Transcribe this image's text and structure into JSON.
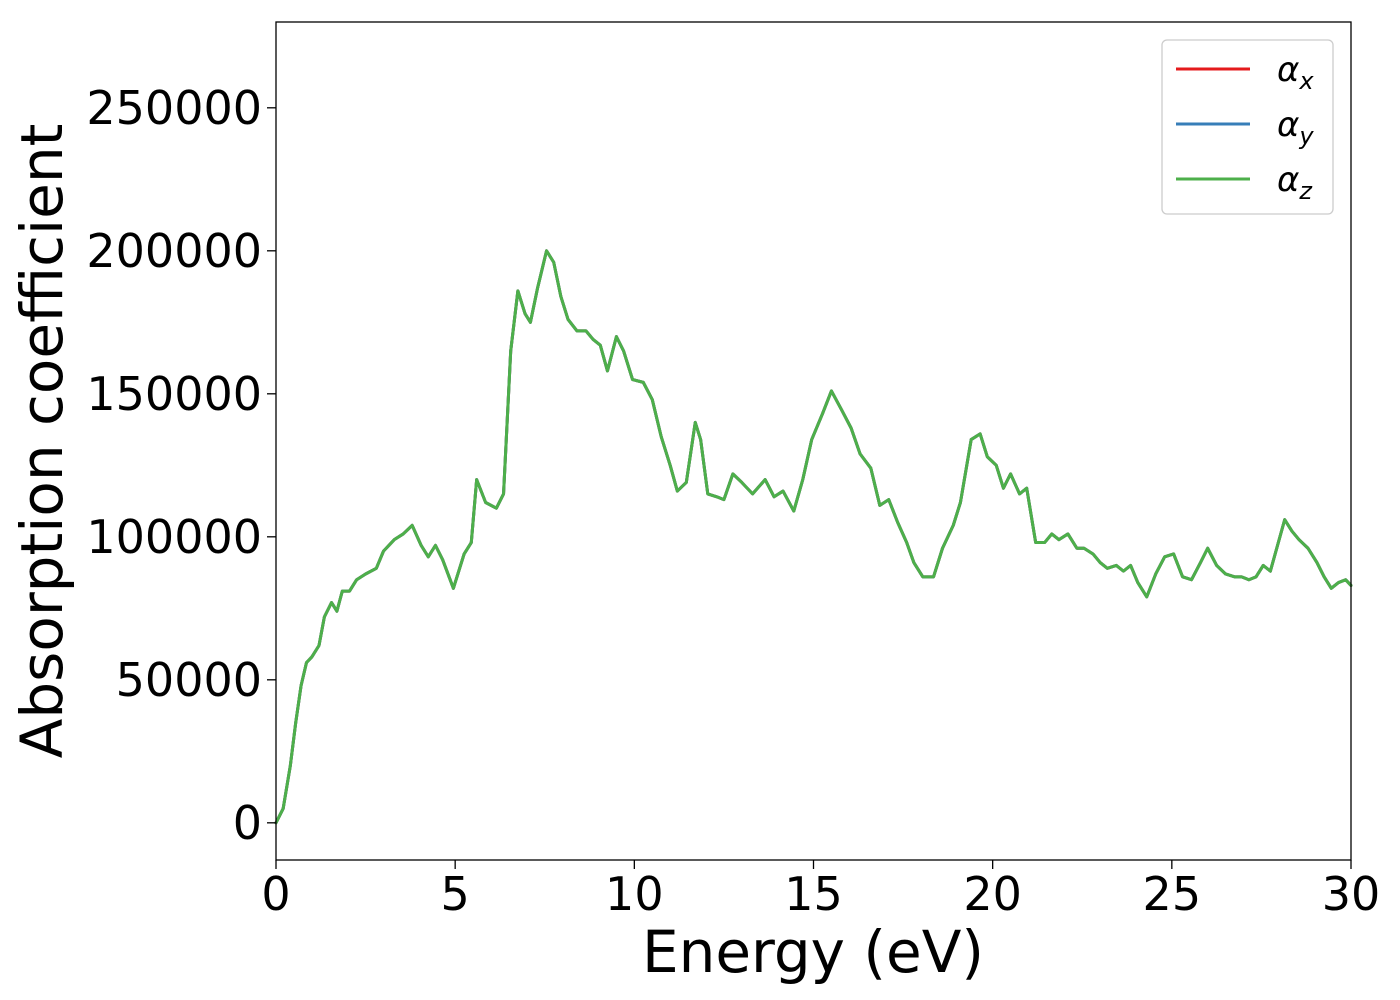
{
  "chart_data": {
    "type": "line",
    "title": "",
    "xlabel": "Energy (eV)",
    "ylabel": "Absorption coefficient",
    "xlim": [
      0,
      30
    ],
    "ylim": [
      -13000,
      280000
    ],
    "x_ticks": [
      0,
      5,
      10,
      15,
      20,
      25,
      30
    ],
    "x_tick_labels": [
      "0",
      "5",
      "10",
      "15",
      "20",
      "25",
      "30"
    ],
    "y_ticks": [
      0,
      50000,
      100000,
      150000,
      200000,
      250000
    ],
    "y_tick_labels": [
      "0",
      "50000",
      "100000",
      "150000",
      "200000",
      "250000"
    ],
    "grid": false,
    "legend_position": "top-right",
    "legend": [
      {
        "symbol": "α",
        "subscript": "x",
        "color": "#e41a1c"
      },
      {
        "symbol": "α",
        "subscript": "y",
        "color": "#377eb8"
      },
      {
        "symbol": "α",
        "subscript": "z",
        "color": "#4daf4a"
      }
    ],
    "x": [
      0.0,
      0.2,
      0.4,
      0.55,
      0.7,
      0.85,
      1.0,
      1.2,
      1.35,
      1.55,
      1.7,
      1.85,
      2.05,
      2.25,
      2.5,
      2.8,
      3.0,
      3.3,
      3.55,
      3.8,
      4.05,
      4.25,
      4.45,
      4.65,
      4.95,
      5.25,
      5.45,
      5.6,
      5.85,
      6.15,
      6.35,
      6.55,
      6.75,
      6.95,
      7.1,
      7.3,
      7.55,
      7.75,
      7.95,
      8.15,
      8.4,
      8.65,
      8.85,
      9.05,
      9.25,
      9.5,
      9.7,
      9.95,
      10.25,
      10.5,
      10.75,
      11.0,
      11.2,
      11.45,
      11.7,
      11.85,
      12.05,
      12.3,
      12.5,
      12.75,
      13.0,
      13.3,
      13.65,
      13.9,
      14.15,
      14.45,
      14.7,
      14.95,
      15.25,
      15.5,
      15.8,
      16.05,
      16.3,
      16.6,
      16.85,
      17.1,
      17.35,
      17.6,
      17.8,
      18.05,
      18.35,
      18.6,
      18.9,
      19.1,
      19.4,
      19.65,
      19.85,
      20.1,
      20.3,
      20.5,
      20.75,
      20.95,
      21.2,
      21.45,
      21.65,
      21.85,
      22.1,
      22.35,
      22.55,
      22.8,
      23.0,
      23.2,
      23.45,
      23.65,
      23.85,
      24.05,
      24.3,
      24.55,
      24.8,
      25.05,
      25.3,
      25.55,
      25.8,
      26.0,
      26.25,
      26.5,
      26.75,
      26.95,
      27.15,
      27.35,
      27.55,
      27.75,
      27.95,
      28.15,
      28.35,
      28.55,
      28.8,
      29.05,
      29.25,
      29.45,
      29.65,
      29.85,
      30.0
    ],
    "series": [
      {
        "name": "α_x",
        "color": "#e41a1c",
        "values": [
          0,
          5000,
          20000,
          35000,
          48000,
          56000,
          58000,
          62000,
          72000,
          77000,
          74000,
          81000,
          81000,
          85000,
          87000,
          89000,
          95000,
          99000,
          101000,
          104000,
          97000,
          93000,
          97000,
          92000,
          82000,
          94000,
          98000,
          120000,
          112000,
          110000,
          115000,
          165000,
          186000,
          178000,
          175000,
          187000,
          200000,
          196000,
          184000,
          176000,
          172000,
          172000,
          169000,
          167000,
          158000,
          170000,
          165000,
          155000,
          154000,
          148000,
          135000,
          125000,
          116000,
          119000,
          140000,
          134000,
          115000,
          114000,
          113000,
          122000,
          119000,
          115000,
          120000,
          114000,
          116000,
          109000,
          120000,
          134000,
          143000,
          151000,
          144000,
          138000,
          129000,
          124000,
          111000,
          113000,
          105000,
          98000,
          91000,
          86000,
          86000,
          96000,
          104000,
          112000,
          134000,
          136000,
          128000,
          125000,
          117000,
          122000,
          115000,
          117000,
          98000,
          98000,
          101000,
          99000,
          101000,
          96000,
          96000,
          94000,
          91000,
          89000,
          90000,
          88000,
          90000,
          84000,
          79000,
          87000,
          93000,
          94000,
          86000,
          85000,
          91000,
          96000,
          90000,
          87000,
          86000,
          86000,
          85000,
          86000,
          90000,
          88000,
          97000,
          106000,
          102000,
          99000,
          96000,
          91000,
          86000,
          82000,
          84000,
          85000,
          83000
        ]
      },
      {
        "name": "α_y",
        "color": "#377eb8",
        "values": [
          0,
          5000,
          20000,
          35000,
          48000,
          56000,
          58000,
          62000,
          72000,
          77000,
          74000,
          81000,
          81000,
          85000,
          87000,
          89000,
          95000,
          99000,
          101000,
          104000,
          97000,
          93000,
          97000,
          92000,
          82000,
          94000,
          98000,
          120000,
          112000,
          110000,
          115000,
          165000,
          186000,
          178000,
          175000,
          187000,
          200000,
          196000,
          184000,
          176000,
          172000,
          172000,
          169000,
          167000,
          158000,
          170000,
          165000,
          155000,
          154000,
          148000,
          135000,
          125000,
          116000,
          119000,
          140000,
          134000,
          115000,
          114000,
          113000,
          122000,
          119000,
          115000,
          120000,
          114000,
          116000,
          109000,
          120000,
          134000,
          143000,
          151000,
          144000,
          138000,
          129000,
          124000,
          111000,
          113000,
          105000,
          98000,
          91000,
          86000,
          86000,
          96000,
          104000,
          112000,
          134000,
          136000,
          128000,
          125000,
          117000,
          122000,
          115000,
          117000,
          98000,
          98000,
          101000,
          99000,
          101000,
          96000,
          96000,
          94000,
          91000,
          89000,
          90000,
          88000,
          90000,
          84000,
          79000,
          87000,
          93000,
          94000,
          86000,
          85000,
          91000,
          96000,
          90000,
          87000,
          86000,
          86000,
          85000,
          86000,
          90000,
          88000,
          97000,
          106000,
          102000,
          99000,
          96000,
          91000,
          86000,
          82000,
          84000,
          85000,
          83000
        ]
      },
      {
        "name": "α_z",
        "color": "#4daf4a",
        "values": [
          0,
          5000,
          20000,
          35000,
          48000,
          56000,
          58000,
          62000,
          72000,
          77000,
          74000,
          81000,
          81000,
          85000,
          87000,
          89000,
          95000,
          99000,
          101000,
          104000,
          97000,
          93000,
          97000,
          92000,
          82000,
          94000,
          98000,
          120000,
          112000,
          110000,
          115000,
          165000,
          186000,
          178000,
          175000,
          187000,
          200000,
          196000,
          184000,
          176000,
          172000,
          172000,
          169000,
          167000,
          158000,
          170000,
          165000,
          155000,
          154000,
          148000,
          135000,
          125000,
          116000,
          119000,
          140000,
          134000,
          115000,
          114000,
          113000,
          122000,
          119000,
          115000,
          120000,
          114000,
          116000,
          109000,
          120000,
          134000,
          143000,
          151000,
          144000,
          138000,
          129000,
          124000,
          111000,
          113000,
          105000,
          98000,
          91000,
          86000,
          86000,
          96000,
          104000,
          112000,
          134000,
          136000,
          128000,
          125000,
          117000,
          122000,
          115000,
          117000,
          98000,
          98000,
          101000,
          99000,
          101000,
          96000,
          96000,
          94000,
          91000,
          89000,
          90000,
          88000,
          90000,
          84000,
          79000,
          87000,
          93000,
          94000,
          86000,
          85000,
          91000,
          96000,
          90000,
          87000,
          86000,
          86000,
          85000,
          86000,
          90000,
          88000,
          97000,
          106000,
          102000,
          99000,
          96000,
          91000,
          86000,
          82000,
          84000,
          85000,
          83000
        ]
      }
    ]
  }
}
